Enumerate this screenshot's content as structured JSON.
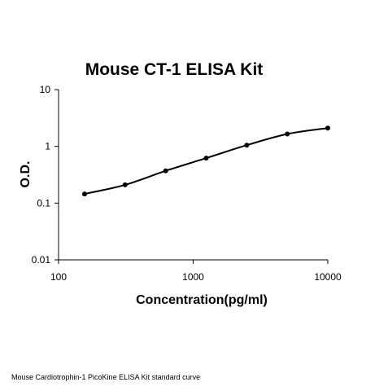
{
  "chart_data": {
    "type": "line",
    "title": "Mouse CT-1 ELISA Kit",
    "xlabel": "Concentration(pg/ml)",
    "ylabel": "O.D.",
    "xscale": "log",
    "yscale": "log",
    "xlim": [
      100,
      10000
    ],
    "ylim": [
      0.01,
      10
    ],
    "x_ticks": [
      "100",
      "1000",
      "10000"
    ],
    "y_ticks": [
      "10",
      "1",
      "0.1",
      "0.01"
    ],
    "grid": false,
    "line_color": "#000000",
    "marker_color": "#000000",
    "series": [
      {
        "x": [
          156,
          312,
          625,
          1250,
          2500,
          5000,
          10000
        ],
        "y": [
          0.145,
          0.21,
          0.37,
          0.62,
          1.05,
          1.65,
          2.1
        ]
      }
    ]
  },
  "caption": "Mouse Cardiotrophin-1 PicoKine ELISA Kit standard curve"
}
